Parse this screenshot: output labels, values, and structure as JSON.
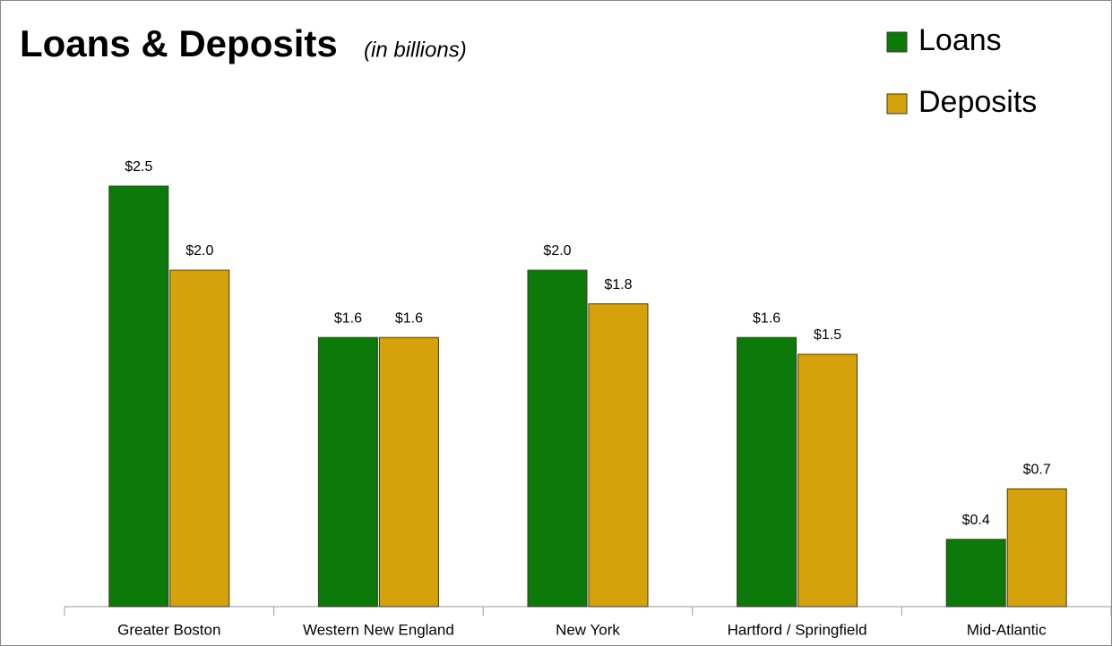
{
  "chart_data": {
    "type": "bar",
    "title": "Loans & Deposits",
    "subtitle": "(in billions)",
    "categories": [
      "Greater Boston",
      "Western New England",
      "New York",
      "Hartford / Springfield",
      "Mid-Atlantic"
    ],
    "series": [
      {
        "name": "Loans",
        "color": "#0b7a0b",
        "values": [
          2.5,
          1.6,
          2.0,
          1.6,
          0.4
        ],
        "value_labels": [
          "$2.5",
          "$1.6",
          "$2.0",
          "$1.6",
          "$0.4"
        ]
      },
      {
        "name": "Deposits",
        "color": "#d6a20c",
        "values": [
          2.0,
          1.6,
          1.8,
          1.5,
          0.7
        ],
        "value_labels": [
          "$2.0",
          "$1.6",
          "$1.8",
          "$1.5",
          "$0.7"
        ]
      }
    ],
    "ylim": [
      0,
      3
    ],
    "legend": "top-right"
  }
}
